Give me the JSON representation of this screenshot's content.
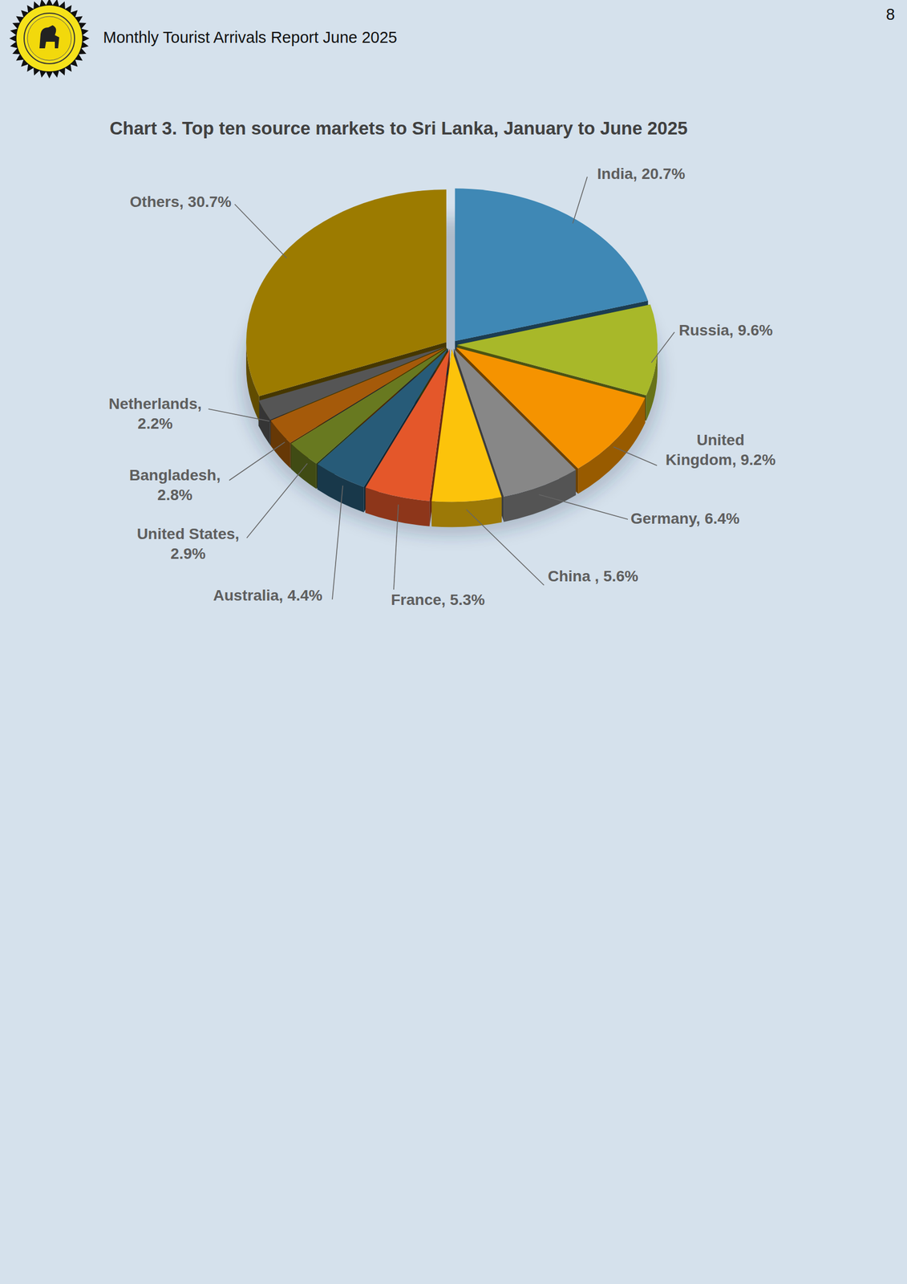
{
  "header": {
    "title": "Monthly Tourist Arrivals Report June 2025",
    "page_number": 8
  },
  "chart_data": {
    "type": "pie",
    "title": "Chart 3. Top ten source markets to Sri Lanka, January to June 2025",
    "categories": [
      "India",
      "Russia",
      "United Kingdom",
      "Germany",
      "China ",
      "France",
      "Australia",
      "United States",
      "Bangladesh",
      "Netherlands",
      "Others"
    ],
    "values": [
      20.7,
      9.6,
      9.2,
      6.4,
      5.6,
      5.3,
      4.4,
      2.9,
      2.8,
      2.2,
      30.7
    ],
    "value_labels": [
      "20.7%",
      "9.6%",
      "9.2%",
      "6.4%",
      "5.6%",
      "5.3%",
      "4.4%",
      "2.9%",
      "2.8%",
      "2.2%",
      "30.7%"
    ],
    "colors": [
      "#3f88b5",
      "#a8b829",
      "#f59300",
      "#878787",
      "#fcc30b",
      "#e4572a",
      "#275b78",
      "#687920",
      "#a55a0a",
      "#555555",
      "#9c7b00"
    ],
    "data_labels": true
  }
}
